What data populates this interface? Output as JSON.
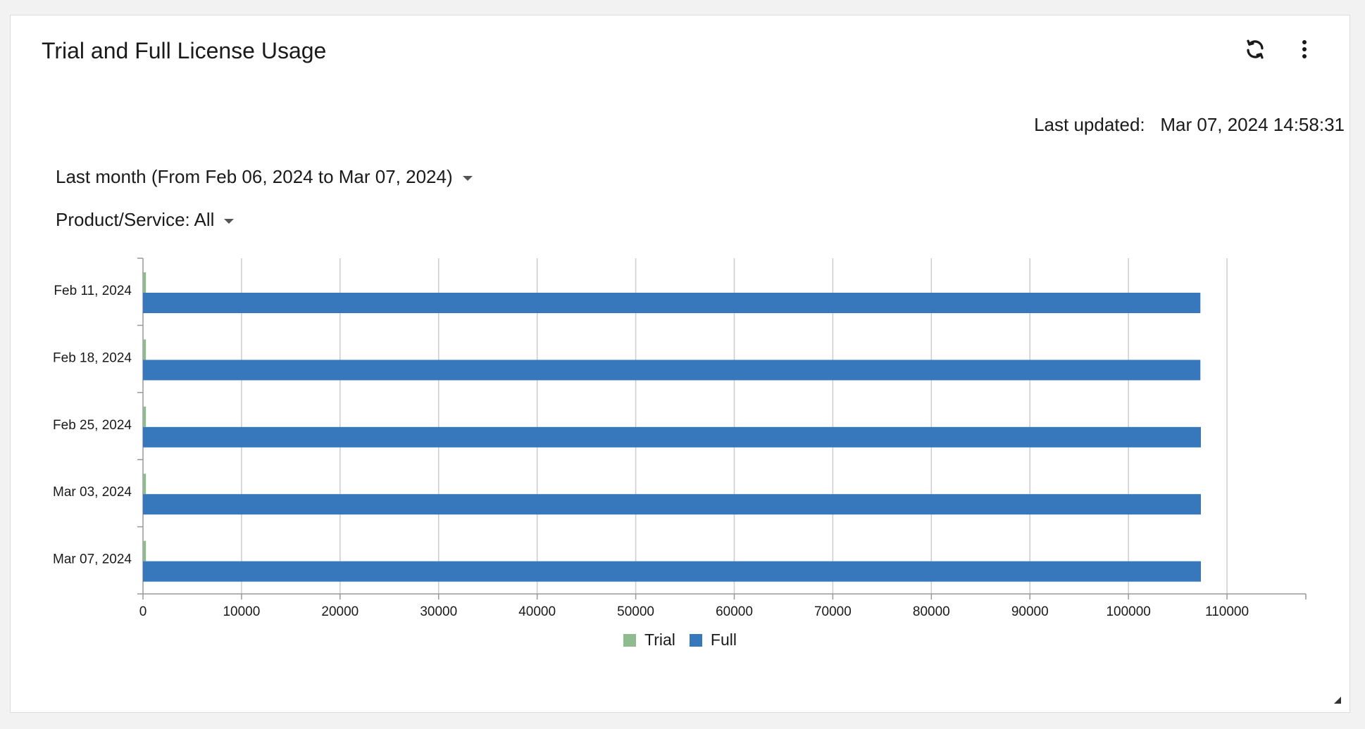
{
  "card": {
    "title": "Trial and Full License Usage",
    "refresh_icon": "refresh-icon",
    "more_icon": "vertical-dots-icon"
  },
  "last_updated": {
    "label": "Last updated:",
    "value": "Mar 07, 2024 14:58:31"
  },
  "filters": {
    "range_label": "Last month (From Feb 06, 2024 to Mar 07, 2024)",
    "product_label": "Product/Service: All"
  },
  "colors": {
    "trial": "#8fbc8f",
    "full": "#3778bd",
    "grid": "#cccccc",
    "axis": "#999999"
  },
  "chart_data": {
    "type": "bar",
    "orientation": "horizontal",
    "categories": [
      "Feb 11, 2024",
      "Feb 18, 2024",
      "Feb 25, 2024",
      "Mar 03, 2024",
      "Mar 07, 2024"
    ],
    "series": [
      {
        "name": "Trial",
        "values": [
          300,
          300,
          300,
          300,
          300
        ]
      },
      {
        "name": "Full",
        "values": [
          107300,
          107300,
          107350,
          107350,
          107350
        ]
      }
    ],
    "xlim": [
      0,
      118000
    ],
    "xticks": [
      0,
      10000,
      20000,
      30000,
      40000,
      50000,
      60000,
      70000,
      80000,
      90000,
      100000,
      110000
    ],
    "grid": true,
    "legend": "bottom-center"
  }
}
